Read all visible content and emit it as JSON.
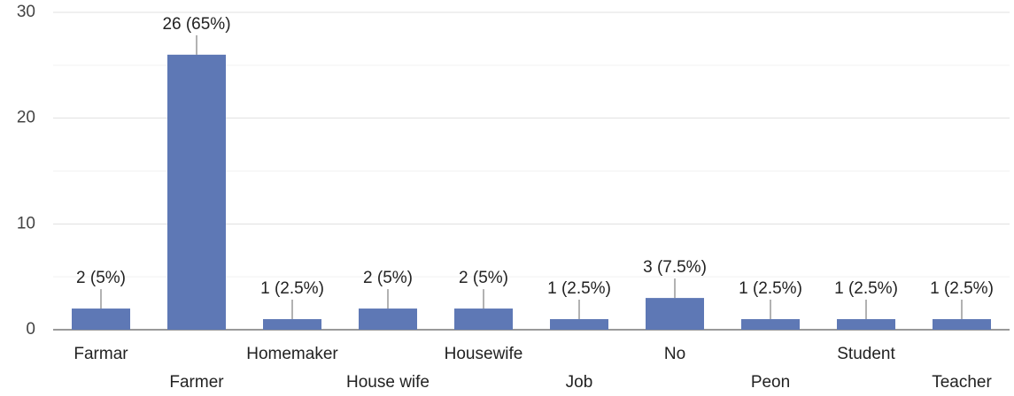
{
  "chart_data": {
    "type": "bar",
    "categories": [
      "Farmar",
      "Farmer",
      "Homemaker",
      "House wife",
      "Housewife",
      "Job",
      "No",
      "Peon",
      "Student",
      "Teacher"
    ],
    "values": [
      2,
      26,
      1,
      2,
      2,
      1,
      3,
      1,
      1,
      1
    ],
    "value_labels": [
      "2 (5%)",
      "26 (65%)",
      "1 (2.5%)",
      "2 (5%)",
      "2 (5%)",
      "1 (2.5%)",
      "3 (7.5%)",
      "1 (2.5%)",
      "1 (2.5%)",
      "1 (2.5%)"
    ],
    "color": "#5e78b5",
    "ylim": [
      0,
      30
    ],
    "yticks": [
      0,
      10,
      20,
      30
    ],
    "minor_yticks": [
      5,
      15,
      25
    ],
    "grid": true
  }
}
